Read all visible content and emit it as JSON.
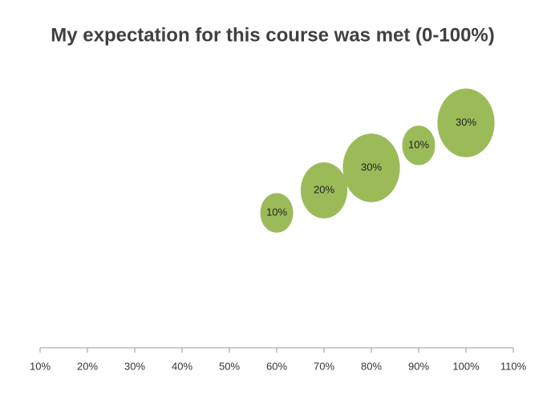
{
  "chart_data": {
    "type": "bubble",
    "title": "My expectation for this course was met (0-100%)",
    "series": [
      {
        "color": "#9bbb59",
        "x": [
          60,
          70,
          80,
          90,
          100
        ],
        "y": [
          60,
          70,
          80,
          90,
          100
        ],
        "sizes": [
          10,
          20,
          30,
          10,
          30
        ],
        "value_labels": [
          "10%",
          "20%",
          "30%",
          "10%",
          "30%"
        ]
      }
    ],
    "xlim": [
      10,
      110
    ],
    "xticks": [
      {
        "value": 10,
        "label": "10%"
      },
      {
        "value": 20,
        "label": "20%"
      },
      {
        "value": 30,
        "label": "30%"
      },
      {
        "value": 40,
        "label": "40%"
      },
      {
        "value": 50,
        "label": "50%"
      },
      {
        "value": 60,
        "label": "60%"
      },
      {
        "value": 70,
        "label": "70%"
      },
      {
        "value": 80,
        "label": "80%"
      },
      {
        "value": 90,
        "label": "90%"
      },
      {
        "value": 100,
        "label": "100%"
      },
      {
        "value": 110,
        "label": "110%"
      }
    ],
    "ylim": [
      0,
      130
    ]
  }
}
